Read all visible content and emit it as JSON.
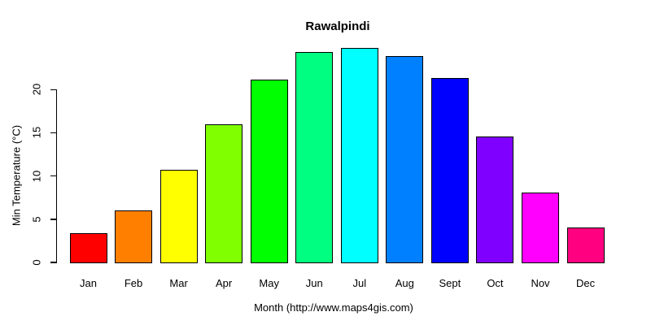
{
  "chart_data": {
    "type": "bar",
    "title": "Rawalpindi",
    "xlabel": "Month (http://www.maps4gis.com)",
    "ylabel": "Min Temperature (°C)",
    "categories": [
      "Jan",
      "Feb",
      "Mar",
      "Apr",
      "May",
      "Jun",
      "Jul",
      "Aug",
      "Sept",
      "Oct",
      "Nov",
      "Dec"
    ],
    "values": [
      3.4,
      6.0,
      10.7,
      16.0,
      21.2,
      24.4,
      24.8,
      23.9,
      21.3,
      14.6,
      8.1,
      4.0
    ],
    "bar_colors": [
      "#FF0000",
      "#FF8000",
      "#FFFF00",
      "#80FF00",
      "#00FF00",
      "#00FF80",
      "#00FFFF",
      "#0080FF",
      "#0000FF",
      "#8000FF",
      "#FF00FF",
      "#FF0080"
    ],
    "bar_border_color": "#000000",
    "axis_color": "#000000",
    "text_color": "#000000",
    "background_color": "#FFFFFF",
    "yticks": [
      "0",
      "5",
      "10",
      "15",
      "20"
    ],
    "ytick_values": [
      0,
      5,
      10,
      15,
      20
    ],
    "ylim": [
      0,
      24.8
    ],
    "grid": false,
    "legend": false
  }
}
